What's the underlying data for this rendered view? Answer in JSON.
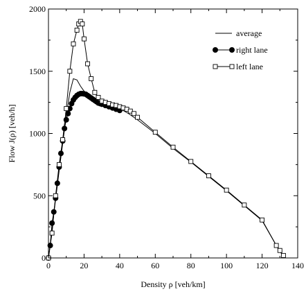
{
  "chart_data": {
    "type": "line",
    "xlabel": "Density ρ [veh/km]",
    "ylabel": "Flow J(ρ) [veh/h]",
    "xlim": [
      0,
      140
    ],
    "ylim": [
      0,
      2000
    ],
    "xticks": [
      "0",
      "20",
      "40",
      "60",
      "80",
      "100",
      "120",
      "140"
    ],
    "yticks": [
      "0",
      "500",
      "1000",
      "1500",
      "2000"
    ],
    "grid": false,
    "legend_position": "top-right",
    "series": [
      {
        "name": "average",
        "marker": "none",
        "x": [
          0,
          2,
          4,
          6,
          8,
          10,
          12,
          14,
          16,
          18,
          20,
          22,
          25,
          30,
          35,
          40,
          45,
          50,
          60,
          70,
          80,
          90,
          100,
          110,
          120,
          130,
          132
        ],
        "y": [
          0,
          230,
          470,
          700,
          920,
          1140,
          1330,
          1440,
          1430,
          1380,
          1340,
          1320,
          1290,
          1250,
          1220,
          1200,
          1160,
          1110,
          1000,
          880,
          770,
          655,
          540,
          420,
          300,
          50,
          20
        ]
      },
      {
        "name": "right lane",
        "marker": "filled-circle",
        "x": [
          0,
          1,
          2,
          3,
          4,
          5,
          6,
          7,
          8,
          9,
          10,
          11,
          12,
          13,
          14,
          15,
          16,
          17,
          18,
          19,
          20,
          21,
          22,
          23,
          24,
          25,
          26,
          27,
          28,
          29,
          30,
          32,
          34,
          36,
          38,
          40
        ],
        "y": [
          0,
          100,
          280,
          370,
          480,
          600,
          730,
          840,
          940,
          1040,
          1110,
          1160,
          1200,
          1240,
          1270,
          1290,
          1305,
          1315,
          1320,
          1320,
          1318,
          1315,
          1305,
          1295,
          1285,
          1275,
          1265,
          1255,
          1245,
          1240,
          1235,
          1225,
          1215,
          1205,
          1195,
          1185
        ]
      },
      {
        "name": "left lane",
        "marker": "open-square",
        "x": [
          0,
          2,
          4,
          6,
          8,
          10,
          12,
          14,
          16,
          17,
          18,
          19,
          20,
          22,
          24,
          26,
          28,
          30,
          32,
          34,
          36,
          38,
          40,
          42,
          44,
          46,
          48,
          50,
          60,
          70,
          80,
          90,
          100,
          110,
          120,
          128,
          130,
          132
        ],
        "y": [
          0,
          200,
          500,
          750,
          950,
          1200,
          1500,
          1720,
          1830,
          1880,
          1900,
          1880,
          1760,
          1560,
          1440,
          1330,
          1290,
          1260,
          1250,
          1240,
          1230,
          1225,
          1215,
          1205,
          1195,
          1180,
          1160,
          1130,
          1010,
          890,
          775,
          660,
          545,
          425,
          305,
          100,
          60,
          20
        ]
      }
    ]
  }
}
